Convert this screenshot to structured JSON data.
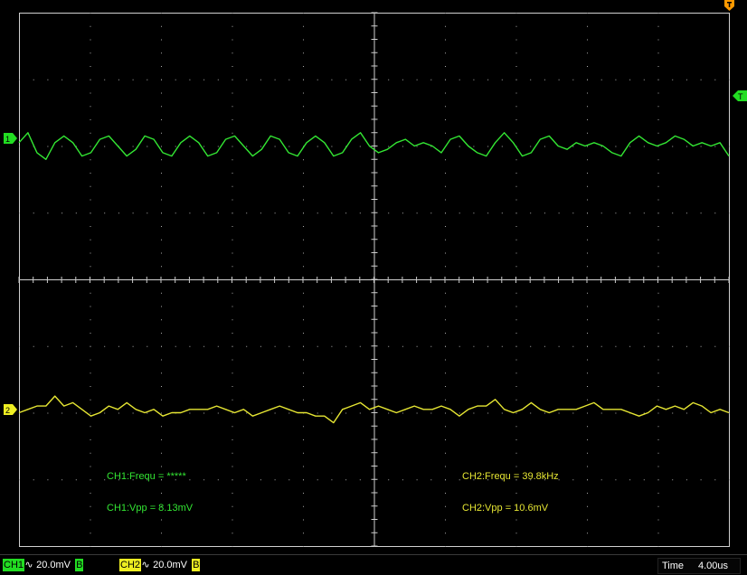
{
  "colors": {
    "ch1": "#33e633",
    "ch2": "#e6e633",
    "grid": "#d0d0d0",
    "background": "#000000",
    "trigger": "#ff9900"
  },
  "markers": {
    "ch1_label": "1",
    "ch2_label": "2",
    "trigger_level_label": "T"
  },
  "measurements": {
    "ch1_freq": "CH1:Frequ = *****",
    "ch1_vpp": "CH1:Vpp = 8.13mV",
    "ch2_freq": "CH2:Frequ = 39.8kHz",
    "ch2_vpp": "CH2:Vpp = 10.6mV"
  },
  "status": {
    "ch1_label": "CH1",
    "ch1_coupling_icon": "ac-coupling-icon",
    "ch1_coupling_glyph": "∿",
    "ch1_scale": "20.0mV",
    "ch1_bw": "B",
    "ch2_label": "CH2",
    "ch2_coupling_icon": "ac-coupling-icon",
    "ch2_coupling_glyph": "∿",
    "ch2_scale": "20.0mV",
    "ch2_bw": "B",
    "time_label": "Time",
    "time_value": "4.00us"
  },
  "chart_data": {
    "type": "line",
    "grid": true,
    "x_divisions": 10,
    "y_divisions": 8,
    "series": [
      {
        "name": "CH1",
        "offset_div": 2.0,
        "values": [
          0.05,
          0.2,
          -0.1,
          -0.2,
          0.05,
          0.15,
          0.05,
          -0.15,
          -0.1,
          0.1,
          0.15,
          0.0,
          -0.15,
          -0.05,
          0.15,
          0.1,
          -0.1,
          -0.15,
          0.05,
          0.15,
          0.05,
          -0.15,
          -0.1,
          0.1,
          0.15,
          0.0,
          -0.15,
          -0.05,
          0.15,
          0.1,
          -0.1,
          -0.15,
          0.05,
          0.15,
          0.05,
          -0.15,
          -0.1,
          0.1,
          0.2,
          0.0,
          -0.1,
          -0.05,
          0.05,
          0.1,
          0.0,
          0.05,
          0.0,
          -0.1,
          0.1,
          0.15,
          0.0,
          -0.1,
          -0.15,
          0.05,
          0.2,
          0.05,
          -0.15,
          -0.1,
          0.1,
          0.15,
          0.0,
          -0.05,
          0.05,
          0.0,
          0.05,
          0.0,
          -0.1,
          -0.15,
          0.05,
          0.15,
          0.05,
          0.0,
          0.05,
          0.15,
          0.1,
          0.0,
          0.05,
          0.0,
          0.05,
          -0.15
        ]
      },
      {
        "name": "CH2",
        "offset_div": -2.0,
        "values": [
          0.0,
          0.05,
          0.1,
          0.1,
          0.25,
          0.1,
          0.15,
          0.05,
          -0.05,
          0.0,
          0.1,
          0.05,
          0.15,
          0.05,
          0.0,
          0.05,
          -0.05,
          0.0,
          0.0,
          0.05,
          0.05,
          0.05,
          0.1,
          0.05,
          0.0,
          0.05,
          -0.05,
          0.0,
          0.05,
          0.1,
          0.05,
          0.0,
          0.0,
          -0.05,
          -0.05,
          -0.15,
          0.05,
          0.1,
          0.15,
          0.05,
          0.1,
          0.05,
          0.0,
          0.05,
          0.1,
          0.05,
          0.05,
          0.1,
          0.05,
          -0.05,
          0.05,
          0.1,
          0.1,
          0.2,
          0.05,
          0.0,
          0.05,
          0.15,
          0.05,
          0.0,
          0.05,
          0.05,
          0.05,
          0.1,
          0.15,
          0.05,
          0.05,
          0.05,
          0.0,
          -0.05,
          0.0,
          0.1,
          0.05,
          0.1,
          0.05,
          0.15,
          0.1,
          0.0,
          0.05,
          0.0
        ]
      }
    ]
  }
}
